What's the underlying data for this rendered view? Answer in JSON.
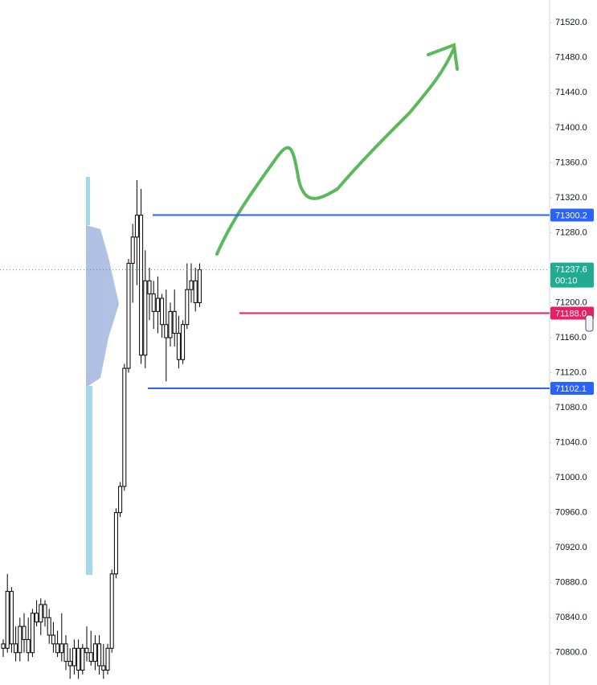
{
  "chart_data": {
    "type": "candlestick",
    "open": [
      70810,
      70805,
      70870,
      70810,
      70800,
      70830,
      70815,
      70800,
      70845,
      70835,
      70855,
      70840,
      70820,
      70810,
      70800,
      70810,
      70790,
      70785,
      70805,
      70780,
      70805,
      70800,
      70790,
      70810,
      70785,
      70780,
      70805,
      70890,
      70960,
      70990,
      71125,
      71245,
      71275,
      71300,
      71140,
      71225,
      71210,
      71190,
      71205,
      71175,
      71160,
      71190,
      71165,
      71135,
      71175,
      71215,
      71225,
      71200
    ],
    "high": [
      70815,
      70890,
      70875,
      70830,
      70840,
      70845,
      70840,
      70850,
      70860,
      70862,
      70860,
      70850,
      70835,
      70825,
      70845,
      70820,
      70805,
      70815,
      70815,
      70810,
      70830,
      70825,
      70820,
      70820,
      70810,
      70810,
      70895,
      70965,
      70995,
      71130,
      71250,
      71290,
      71340,
      71330,
      71260,
      71240,
      71225,
      71230,
      71210,
      71215,
      71200,
      71215,
      71185,
      71180,
      71245,
      71245,
      71240,
      71245
    ],
    "low": [
      70795,
      70800,
      70800,
      70790,
      70790,
      70800,
      70790,
      70795,
      70830,
      70820,
      70830,
      70810,
      70800,
      70795,
      70790,
      70780,
      70770,
      70775,
      70770,
      70775,
      70790,
      70785,
      70780,
      70775,
      70770,
      70775,
      70800,
      70885,
      70955,
      70985,
      71120,
      71200,
      71220,
      71130,
      71125,
      71180,
      71170,
      71165,
      71160,
      71110,
      71150,
      71150,
      71125,
      71130,
      71170,
      71200,
      71190,
      71195
    ],
    "close": [
      70805,
      70870,
      70810,
      70800,
      70830,
      70815,
      70800,
      70845,
      70835,
      70855,
      70840,
      70820,
      70810,
      70800,
      70810,
      70790,
      70785,
      70805,
      70780,
      70805,
      70800,
      70790,
      70810,
      70785,
      70780,
      70805,
      70890,
      70960,
      70990,
      71125,
      71245,
      71275,
      71300,
      71140,
      71225,
      71210,
      71190,
      71205,
      71175,
      71160,
      71190,
      71165,
      71135,
      71175,
      71215,
      71225,
      71200,
      71237.6
    ],
    "ylim": [
      70763,
      71546
    ],
    "yticks": [
      {
        "value": 70800,
        "label": "70800.0"
      },
      {
        "value": 70840,
        "label": "70840.0"
      },
      {
        "value": 70880,
        "label": "70880.0"
      },
      {
        "value": 70920,
        "label": "70920.0"
      },
      {
        "value": 70960,
        "label": "70960.0"
      },
      {
        "value": 71000,
        "label": "71000.0"
      },
      {
        "value": 71040,
        "label": "71040.0"
      },
      {
        "value": 71080,
        "label": "71080.0"
      },
      {
        "value": 71120,
        "label": "71120.0"
      },
      {
        "value": 71160,
        "label": "71160.0"
      },
      {
        "value": 71200,
        "label": "71200.0"
      },
      {
        "value": 71240,
        "label": "71240.0"
      },
      {
        "value": 71280,
        "label": "71280.0"
      },
      {
        "value": 71320,
        "label": "71320.0"
      },
      {
        "value": 71360,
        "label": "71360.0"
      },
      {
        "value": 71400,
        "label": "71400.0"
      },
      {
        "value": 71440,
        "label": "71440.0"
      },
      {
        "value": 71480,
        "label": "71480.0"
      },
      {
        "value": 71520,
        "label": "71520.0"
      }
    ],
    "levels": [
      {
        "value": 71300.2,
        "color": "#2962ff"
      },
      {
        "value": 71188,
        "label": "71188.0",
        "color": "#e91e63"
      },
      {
        "value": 71102.1,
        "color": "#2962ff"
      }
    ],
    "last_price": 71237.6,
    "countdown": "00:10",
    "last_color": "#22ab94"
  }
}
